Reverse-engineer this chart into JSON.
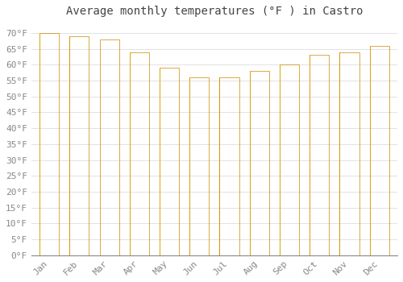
{
  "title": "Average monthly temperatures (°F ) in Castro",
  "months": [
    "Jan",
    "Feb",
    "Mar",
    "Apr",
    "May",
    "Jun",
    "Jul",
    "Aug",
    "Sep",
    "Oct",
    "Nov",
    "Dec"
  ],
  "values": [
    70,
    69,
    68,
    64,
    59,
    56,
    56,
    58,
    60,
    63,
    64,
    66
  ],
  "bar_color_left": "#FFAA00",
  "bar_color_right": "#FFD060",
  "bar_edge_color": "#CC8800",
  "background_color": "#FFFFFF",
  "plot_bg_color": "#FFFFFF",
  "grid_color": "#DDDDDD",
  "title_fontsize": 10,
  "tick_fontsize": 8,
  "ylim": [
    0,
    73
  ],
  "yticks": [
    0,
    5,
    10,
    15,
    20,
    25,
    30,
    35,
    40,
    45,
    50,
    55,
    60,
    65,
    70
  ],
  "ylabel_suffix": "°F",
  "tick_color": "#888888",
  "title_color": "#444444"
}
